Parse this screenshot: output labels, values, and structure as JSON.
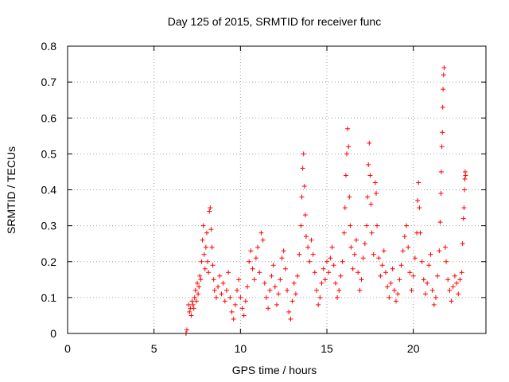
{
  "chart_data": {
    "type": "scatter",
    "title": "Day 125 of 2015, SRMTID for receiver func",
    "xlabel": "GPS time / hours",
    "ylabel": "SRMTID / TECUs",
    "xlim": [
      0,
      24.2
    ],
    "ylim": [
      0,
      0.8
    ],
    "xticks": [
      0,
      5,
      10,
      15,
      20
    ],
    "xtick_labels": [
      "0",
      "5",
      "10",
      "15",
      "20"
    ],
    "yticks": [
      0,
      0.1,
      0.2,
      0.3,
      0.4,
      0.5,
      0.6,
      0.7,
      0.8
    ],
    "ytick_labels": [
      "0",
      "0.1",
      "0.2",
      "0.3",
      "0.4",
      "0.5",
      "0.6",
      "0.7",
      "0.8"
    ],
    "grid": true,
    "marker": "+",
    "color": "#ff0000",
    "series": [
      {
        "name": "SRMTID",
        "points": [
          [
            6.85,
            0.0
          ],
          [
            6.9,
            0.01
          ],
          [
            7.0,
            0.08
          ],
          [
            7.05,
            0.06
          ],
          [
            7.1,
            0.07
          ],
          [
            7.15,
            0.05
          ],
          [
            7.2,
            0.09
          ],
          [
            7.25,
            0.08
          ],
          [
            7.3,
            0.07
          ],
          [
            7.35,
            0.1
          ],
          [
            7.4,
            0.12
          ],
          [
            7.45,
            0.09
          ],
          [
            7.5,
            0.14
          ],
          [
            7.55,
            0.11
          ],
          [
            7.6,
            0.13
          ],
          [
            7.65,
            0.16
          ],
          [
            7.7,
            0.15
          ],
          [
            7.75,
            0.2
          ],
          [
            7.8,
            0.26
          ],
          [
            7.85,
            0.3
          ],
          [
            7.9,
            0.22
          ],
          [
            7.95,
            0.18
          ],
          [
            8.0,
            0.24
          ],
          [
            8.05,
            0.28
          ],
          [
            8.1,
            0.2
          ],
          [
            8.15,
            0.17
          ],
          [
            8.2,
            0.34
          ],
          [
            8.25,
            0.35
          ],
          [
            8.3,
            0.29
          ],
          [
            8.35,
            0.24
          ],
          [
            8.4,
            0.19
          ],
          [
            8.45,
            0.15
          ],
          [
            8.5,
            0.12
          ],
          [
            8.6,
            0.1
          ],
          [
            8.7,
            0.13
          ],
          [
            8.8,
            0.16
          ],
          [
            8.9,
            0.11
          ],
          [
            9.0,
            0.14
          ],
          [
            9.1,
            0.09
          ],
          [
            9.2,
            0.12
          ],
          [
            9.3,
            0.17
          ],
          [
            9.4,
            0.1
          ],
          [
            9.5,
            0.06
          ],
          [
            9.6,
            0.04
          ],
          [
            9.7,
            0.08
          ],
          [
            9.8,
            0.12
          ],
          [
            9.9,
            0.15
          ],
          [
            10.0,
            0.1
          ],
          [
            10.1,
            0.07
          ],
          [
            10.2,
            0.05
          ],
          [
            10.3,
            0.09
          ],
          [
            10.4,
            0.13
          ],
          [
            10.5,
            0.2
          ],
          [
            10.6,
            0.23
          ],
          [
            10.7,
            0.18
          ],
          [
            10.8,
            0.15
          ],
          [
            10.9,
            0.21
          ],
          [
            11.0,
            0.24
          ],
          [
            11.1,
            0.17
          ],
          [
            11.2,
            0.28
          ],
          [
            11.3,
            0.26
          ],
          [
            11.4,
            0.14
          ],
          [
            11.5,
            0.1
          ],
          [
            11.6,
            0.07
          ],
          [
            11.7,
            0.12
          ],
          [
            11.8,
            0.16
          ],
          [
            11.9,
            0.19
          ],
          [
            12.0,
            0.13
          ],
          [
            12.1,
            0.08
          ],
          [
            12.2,
            0.11
          ],
          [
            12.3,
            0.15
          ],
          [
            12.4,
            0.21
          ],
          [
            12.5,
            0.23
          ],
          [
            12.6,
            0.18
          ],
          [
            12.7,
            0.12
          ],
          [
            12.8,
            0.06
          ],
          [
            12.9,
            0.04
          ],
          [
            13.0,
            0.09
          ],
          [
            13.1,
            0.14
          ],
          [
            13.2,
            0.11
          ],
          [
            13.3,
            0.16
          ],
          [
            13.4,
            0.22
          ],
          [
            13.5,
            0.3
          ],
          [
            13.55,
            0.38
          ],
          [
            13.6,
            0.46
          ],
          [
            13.65,
            0.5
          ],
          [
            13.7,
            0.41
          ],
          [
            13.75,
            0.33
          ],
          [
            13.8,
            0.27
          ],
          [
            13.9,
            0.24
          ],
          [
            14.0,
            0.2
          ],
          [
            14.1,
            0.26
          ],
          [
            14.2,
            0.22
          ],
          [
            14.3,
            0.17
          ],
          [
            14.4,
            0.12
          ],
          [
            14.5,
            0.08
          ],
          [
            14.6,
            0.1
          ],
          [
            14.7,
            0.14
          ],
          [
            14.8,
            0.18
          ],
          [
            14.9,
            0.15
          ],
          [
            15.0,
            0.2
          ],
          [
            15.1,
            0.17
          ],
          [
            15.2,
            0.21
          ],
          [
            15.3,
            0.24
          ],
          [
            15.4,
            0.19
          ],
          [
            15.5,
            0.14
          ],
          [
            15.6,
            0.1
          ],
          [
            15.7,
            0.12
          ],
          [
            15.8,
            0.16
          ],
          [
            15.9,
            0.2
          ],
          [
            16.0,
            0.28
          ],
          [
            16.05,
            0.35
          ],
          [
            16.1,
            0.44
          ],
          [
            16.15,
            0.5
          ],
          [
            16.2,
            0.57
          ],
          [
            16.25,
            0.52
          ],
          [
            16.3,
            0.38
          ],
          [
            16.35,
            0.3
          ],
          [
            16.4,
            0.24
          ],
          [
            16.5,
            0.18
          ],
          [
            16.6,
            0.22
          ],
          [
            16.7,
            0.26
          ],
          [
            16.8,
            0.17
          ],
          [
            16.9,
            0.12
          ],
          [
            17.0,
            0.15
          ],
          [
            17.1,
            0.21
          ],
          [
            17.2,
            0.25
          ],
          [
            17.3,
            0.3
          ],
          [
            17.35,
            0.38
          ],
          [
            17.4,
            0.47
          ],
          [
            17.45,
            0.53
          ],
          [
            17.5,
            0.44
          ],
          [
            17.55,
            0.36
          ],
          [
            17.6,
            0.28
          ],
          [
            17.7,
            0.22
          ],
          [
            17.8,
            0.42
          ],
          [
            17.85,
            0.39
          ],
          [
            17.9,
            0.3
          ],
          [
            18.0,
            0.21
          ],
          [
            18.1,
            0.16
          ],
          [
            18.2,
            0.19
          ],
          [
            18.3,
            0.23
          ],
          [
            18.4,
            0.17
          ],
          [
            18.5,
            0.13
          ],
          [
            18.6,
            0.1
          ],
          [
            18.7,
            0.14
          ],
          [
            18.8,
            0.18
          ],
          [
            18.9,
            0.12
          ],
          [
            19.0,
            0.09
          ],
          [
            19.1,
            0.11
          ],
          [
            19.2,
            0.15
          ],
          [
            19.3,
            0.19
          ],
          [
            19.4,
            0.23
          ],
          [
            19.5,
            0.27
          ],
          [
            19.6,
            0.3
          ],
          [
            19.7,
            0.24
          ],
          [
            19.8,
            0.17
          ],
          [
            19.9,
            0.12
          ],
          [
            20.0,
            0.16
          ],
          [
            20.1,
            0.21
          ],
          [
            20.2,
            0.28
          ],
          [
            20.25,
            0.37
          ],
          [
            20.3,
            0.42
          ],
          [
            20.35,
            0.35
          ],
          [
            20.4,
            0.28
          ],
          [
            20.5,
            0.2
          ],
          [
            20.6,
            0.15
          ],
          [
            20.7,
            0.11
          ],
          [
            20.8,
            0.14
          ],
          [
            20.9,
            0.19
          ],
          [
            21.0,
            0.22
          ],
          [
            21.1,
            0.12
          ],
          [
            21.2,
            0.08
          ],
          [
            21.3,
            0.1
          ],
          [
            21.4,
            0.16
          ],
          [
            21.5,
            0.23
          ],
          [
            21.55,
            0.31
          ],
          [
            21.6,
            0.39
          ],
          [
            21.62,
            0.45
          ],
          [
            21.65,
            0.52
          ],
          [
            21.68,
            0.56
          ],
          [
            21.7,
            0.63
          ],
          [
            21.72,
            0.68
          ],
          [
            21.75,
            0.72
          ],
          [
            21.78,
            0.74
          ],
          [
            21.85,
            0.24
          ],
          [
            21.9,
            0.2
          ],
          [
            22.0,
            0.15
          ],
          [
            22.1,
            0.12
          ],
          [
            22.2,
            0.09
          ],
          [
            22.3,
            0.13
          ],
          [
            22.4,
            0.16
          ],
          [
            22.5,
            0.14
          ],
          [
            22.6,
            0.11
          ],
          [
            22.7,
            0.15
          ],
          [
            22.8,
            0.17
          ],
          [
            22.85,
            0.25
          ],
          [
            22.9,
            0.32
          ],
          [
            22.93,
            0.35
          ],
          [
            22.96,
            0.4
          ],
          [
            22.98,
            0.43
          ],
          [
            23.0,
            0.45
          ],
          [
            23.02,
            0.44
          ]
        ]
      }
    ]
  }
}
